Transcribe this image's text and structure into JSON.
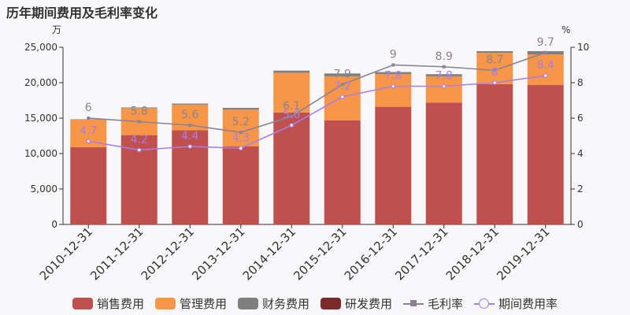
{
  "title": "历年期间费用及毛利率变化",
  "chart_data": {
    "type": "bar",
    "stacked": true,
    "title": "历年期间费用及毛利率变化",
    "y_left_unit": "万",
    "y_right_unit": "%",
    "ylim_left": [
      0,
      25000
    ],
    "ylim_right": [
      0,
      10
    ],
    "y_left_ticks": [
      "0",
      "5,000",
      "10,000",
      "15,000",
      "20,000",
      "25,000"
    ],
    "y_right_ticks": [
      "0",
      "2",
      "4",
      "6",
      "8",
      "10"
    ],
    "grid": false,
    "legend_position": "bottom",
    "categories": [
      "2010-12-31",
      "2011-12-31",
      "2012-12-31",
      "2013-12-31",
      "2014-12-31",
      "2015-12-31",
      "2016-12-31",
      "2017-12-31",
      "2018-12-31",
      "2019-12-31"
    ],
    "series": [
      {
        "name": "销售费用",
        "kind": "bar",
        "axis": "left",
        "color": "#c0504d",
        "values": [
          10900,
          12600,
          13300,
          11000,
          15800,
          14700,
          16600,
          17200,
          19800,
          19700
        ]
      },
      {
        "name": "管理费用",
        "kind": "bar",
        "axis": "left",
        "color": "#f79646",
        "values": [
          3900,
          3800,
          3600,
          5200,
          5600,
          6200,
          4600,
          3700,
          4400,
          4300
        ]
      },
      {
        "name": "财务费用",
        "kind": "bar",
        "axis": "left",
        "color": "#7f7f7f",
        "values": [
          50,
          100,
          150,
          250,
          300,
          400,
          300,
          300,
          250,
          450
        ]
      },
      {
        "name": "研发费用",
        "kind": "bar",
        "axis": "left",
        "color": "#7b2a2a",
        "values": [
          0,
          0,
          0,
          0,
          0,
          0,
          0,
          0,
          0,
          0
        ]
      },
      {
        "name": "毛利率",
        "kind": "line",
        "axis": "right",
        "color": "#8c8296",
        "marker": "square",
        "values": [
          6,
          5.8,
          5.6,
          5.2,
          6.1,
          7.9,
          9,
          8.9,
          8.7,
          9.7
        ],
        "labels": [
          "6",
          "5.8",
          "5.6",
          "5.2",
          "6.1",
          "7.9",
          "9",
          "8.9",
          "8.7",
          "9.7"
        ]
      },
      {
        "name": "期间费用率",
        "kind": "line",
        "axis": "right",
        "color": "#a97ee8",
        "marker": "circle",
        "values": [
          4.7,
          4.2,
          4.4,
          4.3,
          5.6,
          7.2,
          7.8,
          7.8,
          8,
          8.4
        ],
        "labels": [
          "4.7",
          "4.2",
          "4.4",
          "4.3",
          "5.6",
          "7.2",
          "7.8",
          "7.8",
          "8",
          "8.4"
        ]
      }
    ]
  }
}
